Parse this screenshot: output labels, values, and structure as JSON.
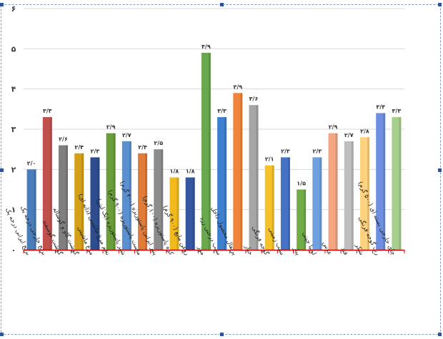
{
  "chart_data": {
    "type": "bar",
    "title": "",
    "xlabel": "",
    "ylabel": "",
    "ylim": [
      0,
      6
    ],
    "yticks": [
      "۰",
      "۱",
      "۲",
      "۳",
      "۴",
      "۵",
      "۶"
    ],
    "grid": true,
    "legend": "none",
    "categories": [
      "برنج ایرانی درجه یک",
      "برنج خارجی درجه یک",
      "گوشت گوسفند",
      "گوشت گاو و گوساله",
      "مرغ ماشینی",
      "تخم مرغ ماشینی (دانه ای)",
      "شیر پاستوریزه (یک لیتر)",
      "ماست پاستوریزه (۹۰۰ گرم)",
      "پنیر ایرانی پاستوریزه (۴۰۰ گرم)",
      "کره پاستوریزه (۱۰۰ گرم)",
      "روغن مایع (۹۰۰ گرم)",
      "موز",
      "سیب درختی زرد",
      "پرتقال محصول داخل",
      "خیار",
      "گوجه فرنگی",
      "سیب زمینی",
      "پیاز",
      "لوبیا چیتی",
      "عدس",
      "قند",
      "شکر",
      "رب گوجه فرنگی",
      "چای خارجی بسته ای (۵۰۰ گرم)"
    ],
    "values": [
      2.0,
      3.3,
      2.6,
      2.4,
      2.3,
      2.9,
      2.7,
      2.4,
      2.5,
      1.8,
      1.8,
      4.9,
      3.3,
      3.9,
      3.6,
      2.1,
      2.3,
      1.5,
      2.3,
      2.9,
      2.7,
      2.8,
      3.4,
      3.3
    ],
    "value_labels": [
      "۲/۰",
      "۳/۳",
      "۲/۶",
      "۲/۴",
      "۲/۳",
      "۲/۹",
      "۲/۷",
      "۲/۴",
      "۲/۵",
      "۱/۸",
      "۱/۸",
      "۴/۹",
      "۳/۳",
      "۳/۹",
      "۳/۶",
      "۲/۱",
      "۲/۳",
      "۱/۵",
      "۲/۳",
      "۲/۹",
      "۲/۷",
      "۲/۸",
      "۳/۴",
      "۳/۳"
    ],
    "colors": [
      "#4a7ebb",
      "#c0504d",
      "#7f7f7f",
      "#d4a017",
      "#2e4d8f",
      "#6a9e3a",
      "#5a8fd0",
      "#e07b39",
      "#8c8c8c",
      "#f2b91c",
      "#3556a0",
      "#6aa84f",
      "#3f7fd0",
      "#f0843c",
      "#a6a6a6",
      "#f5c22a",
      "#4472c4",
      "#70ad47",
      "#6fa0e0",
      "#f4a582",
      "#bfbfbf",
      "#ffd27f",
      "#6f8fe0",
      "#a6cf8e"
    ]
  }
}
